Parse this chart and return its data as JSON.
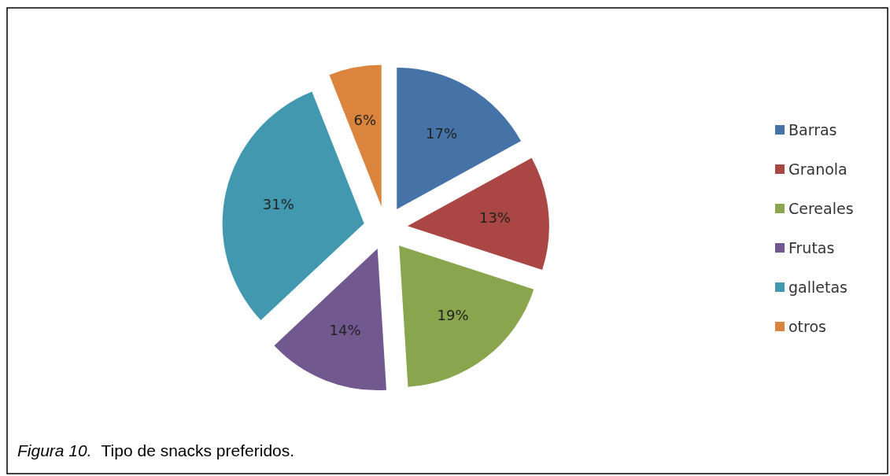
{
  "chart_data": {
    "type": "pie",
    "categories": [
      "Barras",
      "Granola",
      "Cereales",
      "Frutas",
      "galletas",
      "otros"
    ],
    "values": [
      17,
      13,
      19,
      14,
      31,
      6
    ],
    "colors": [
      "#4572a7",
      "#aa4643",
      "#89a54e",
      "#71588f",
      "#4198af",
      "#db843d"
    ],
    "value_labels": [
      "17%",
      "13%",
      "19%",
      "14%",
      "31%",
      "6%"
    ],
    "legend": "right",
    "annotations": [
      "Figura 10.",
      "Tipo de snacks preferidos."
    ]
  }
}
